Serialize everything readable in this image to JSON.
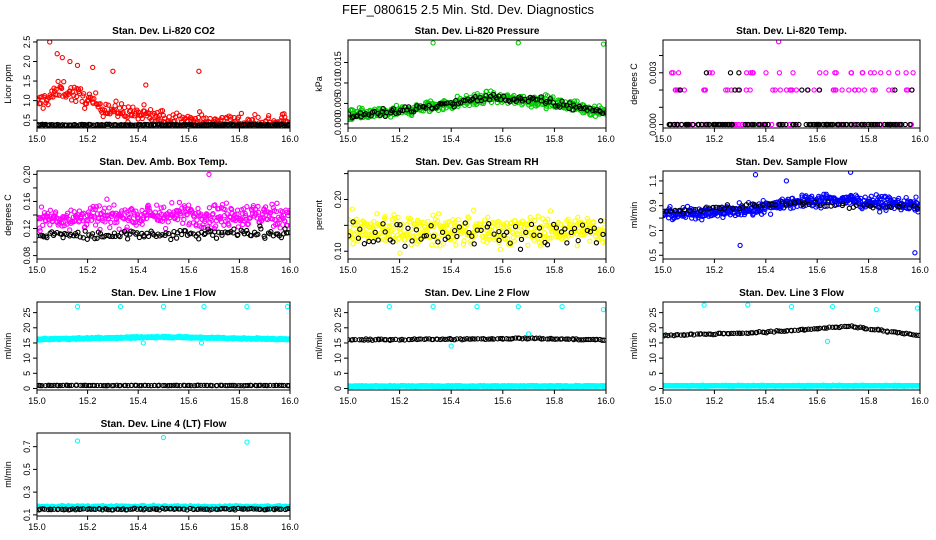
{
  "figure": {
    "title": "FEF_080615  2.5 Min. Std. Dev. Diagnostics"
  },
  "colors": {
    "red": "#ff0000",
    "black": "#000000",
    "green": "#00cc00",
    "magenta": "#ff00ff",
    "yellow": "#ffff00",
    "blue": "#0000ff",
    "cyan": "#00ffff"
  },
  "chart_data": [
    {
      "type": "scatter",
      "title": "Stan. Dev. Li-820 CO2",
      "ylabel": "Licor ppm",
      "xlim": [
        15.0,
        16.0
      ],
      "ylim": [
        0.3,
        2.55
      ],
      "xticks": [
        15.0,
        15.2,
        15.4,
        15.6,
        15.8,
        16.0
      ],
      "yticks": [
        0.5,
        1.0,
        1.5,
        2.0,
        2.5
      ],
      "ytick_labels": [
        "0.5",
        "1.0",
        "1.5",
        "2.0",
        "2.5"
      ],
      "series": [
        {
          "color": "red",
          "base": [
            [
              15.0,
              0.9
            ],
            [
              15.1,
              1.3
            ],
            [
              15.3,
              0.75
            ],
            [
              15.5,
              0.55
            ],
            [
              15.7,
              0.45
            ],
            [
              16.0,
              0.42
            ]
          ],
          "spread": 0.45,
          "n": 280,
          "extra": [
            [
              15.05,
              2.5
            ],
            [
              15.08,
              2.2
            ],
            [
              15.1,
              2.1
            ],
            [
              15.13,
              2.0
            ],
            [
              15.16,
              1.9
            ],
            [
              15.22,
              1.85
            ],
            [
              15.3,
              1.75
            ],
            [
              15.43,
              1.4
            ],
            [
              15.64,
              1.75
            ],
            [
              15.97,
              0.65
            ]
          ]
        },
        {
          "color": "black",
          "base": [
            [
              15.0,
              0.38
            ],
            [
              16.0,
              0.38
            ]
          ],
          "spread": 0.03,
          "n": 180
        }
      ]
    },
    {
      "type": "scatter",
      "title": "Stan. Dev. Li-820 Pressure",
      "ylabel": "kPa",
      "xlim": [
        15.0,
        16.0
      ],
      "ylim": [
        -0.001,
        0.0205
      ],
      "xticks": [
        15.0,
        15.2,
        15.4,
        15.6,
        15.8,
        16.0
      ],
      "yticks": [
        0.0,
        0.005,
        0.01,
        0.015
      ],
      "ytick_labels": [
        "0.000",
        "0.005",
        "0.010",
        "0.015"
      ],
      "series": [
        {
          "color": "green",
          "base": [
            [
              15.0,
              0.002
            ],
            [
              15.2,
              0.003
            ],
            [
              15.35,
              0.0045
            ],
            [
              15.55,
              0.0065
            ],
            [
              15.75,
              0.0055
            ],
            [
              16.0,
              0.003
            ]
          ],
          "spread": 0.0028,
          "n": 420,
          "extra": [
            [
              15.33,
              0.0198
            ],
            [
              15.66,
              0.0198
            ],
            [
              15.99,
              0.0195
            ]
          ]
        },
        {
          "color": "black",
          "base": [
            [
              15.0,
              0.002
            ],
            [
              15.2,
              0.003
            ],
            [
              15.4,
              0.005
            ],
            [
              15.55,
              0.0065
            ],
            [
              15.75,
              0.0055
            ],
            [
              16.0,
              0.003
            ]
          ],
          "spread": 0.0018,
          "n": 120
        }
      ]
    },
    {
      "type": "scatter",
      "title": "Stan. Dev. Li-820 Temp.",
      "ylabel": "degrees C",
      "xlim": [
        15.0,
        16.0
      ],
      "ylim": [
        -0.0002,
        0.0049
      ],
      "xticks": [
        15.0,
        15.2,
        15.4,
        15.6,
        15.8,
        16.0
      ],
      "yticks": [
        0.0,
        0.001,
        0.002,
        0.003,
        0.004
      ],
      "ytick_labels": [
        "0.000",
        "",
        "",
        "0.003",
        ""
      ],
      "series": [
        {
          "color": "magenta",
          "rows": [
            0.0,
            0.002,
            0.003
          ],
          "counts": [
            60,
            45,
            28
          ],
          "extra": [
            [
              15.45,
              0.0048
            ]
          ]
        },
        {
          "color": "black",
          "rows": [
            0.0,
            0.002,
            0.003
          ],
          "counts": [
            140,
            8,
            3
          ]
        }
      ]
    },
    {
      "type": "scatter",
      "title": "Stan. Dev. Amb. Box Temp.",
      "ylabel": "degrees C",
      "xlim": [
        15.0,
        16.0
      ],
      "ylim": [
        0.075,
        0.205
      ],
      "xticks": [
        15.0,
        15.2,
        15.4,
        15.6,
        15.8,
        16.0
      ],
      "yticks": [
        0.08,
        0.1,
        0.12,
        0.14,
        0.16,
        0.18,
        0.2
      ],
      "ytick_labels": [
        "0.08",
        "",
        "0.12",
        "",
        "0.16",
        "",
        "0.20"
      ],
      "series": [
        {
          "color": "magenta",
          "base": [
            [
              15.0,
              0.135
            ],
            [
              15.5,
              0.14
            ],
            [
              16.0,
              0.14
            ]
          ],
          "spread": 0.035,
          "n": 380,
          "extra": [
            [
              15.68,
              0.2
            ]
          ]
        },
        {
          "color": "black",
          "base": [
            [
              15.0,
              0.11
            ],
            [
              15.5,
              0.11
            ],
            [
              16.0,
              0.115
            ]
          ],
          "spread": 0.015,
          "n": 130
        }
      ]
    },
    {
      "type": "scatter",
      "title": "Stan. Dev. Gas Stream RH",
      "ylabel": "percent",
      "xlim": [
        15.0,
        16.0
      ],
      "ylim": [
        0.085,
        0.255
      ],
      "xticks": [
        15.0,
        15.2,
        15.4,
        15.6,
        15.8,
        16.0
      ],
      "yticks": [
        0.1,
        0.15,
        0.2,
        0.25
      ],
      "ytick_labels": [
        "0.10",
        "",
        "0.20",
        ""
      ],
      "series": [
        {
          "color": "yellow",
          "base": [
            [
              15.0,
              0.14
            ],
            [
              16.0,
              0.14
            ]
          ],
          "spread": 0.055,
          "n": 420
        },
        {
          "color": "black",
          "base": [
            [
              15.0,
              0.135
            ],
            [
              16.0,
              0.135
            ]
          ],
          "spread": 0.05,
          "n": 70
        }
      ]
    },
    {
      "type": "scatter",
      "title": "Stan. Dev. Sample Flow",
      "ylabel": "ml/min",
      "xlim": [
        15.0,
        16.0
      ],
      "ylim": [
        0.47,
        1.18
      ],
      "xticks": [
        15.0,
        15.2,
        15.4,
        15.6,
        15.8,
        16.0
      ],
      "yticks": [
        0.5,
        0.6,
        0.7,
        0.8,
        0.9,
        1.0,
        1.1
      ],
      "ytick_labels": [
        "0.5",
        "",
        "0.7",
        "",
        "0.9",
        "",
        "1.1"
      ],
      "series": [
        {
          "color": "blue",
          "base": [
            [
              15.0,
              0.83
            ],
            [
              15.3,
              0.86
            ],
            [
              15.5,
              0.93
            ],
            [
              15.7,
              0.95
            ],
            [
              16.0,
              0.9
            ]
          ],
          "spread": 0.1,
          "n": 460,
          "extra": [
            [
              15.36,
              1.15
            ],
            [
              15.48,
              1.1
            ],
            [
              15.73,
              1.17
            ],
            [
              15.98,
              0.52
            ],
            [
              15.3,
              0.58
            ]
          ]
        },
        {
          "color": "black",
          "base": [
            [
              15.0,
              0.85
            ],
            [
              15.5,
              0.92
            ],
            [
              16.0,
              0.88
            ]
          ],
          "spread": 0.04,
          "n": 60
        }
      ]
    },
    {
      "type": "scatter",
      "title": "Stan. Dev. Line 1 Flow",
      "ylabel": "ml/min",
      "xlim": [
        15.0,
        16.0
      ],
      "ylim": [
        -0.5,
        28.5
      ],
      "xticks": [
        15.0,
        15.2,
        15.4,
        15.6,
        15.8,
        16.0
      ],
      "yticks": [
        0,
        5,
        10,
        15,
        20,
        25
      ],
      "ytick_labels": [
        "0",
        "5",
        "10",
        "15",
        "20",
        "25"
      ],
      "series": [
        {
          "color": "cyan",
          "base": [
            [
              15.0,
              16.2
            ],
            [
              15.5,
              17.0
            ],
            [
              16.0,
              16.2
            ]
          ],
          "spread": 0.5,
          "n": 520,
          "extra": [
            [
              15.16,
              27
            ],
            [
              15.33,
              27
            ],
            [
              15.5,
              27
            ],
            [
              15.66,
              27
            ],
            [
              15.83,
              27
            ],
            [
              15.99,
              27
            ],
            [
              15.42,
              15
            ],
            [
              15.65,
              15
            ]
          ]
        },
        {
          "color": "black",
          "base": [
            [
              15.0,
              1.0
            ],
            [
              16.0,
              1.0
            ]
          ],
          "spread": 0.15,
          "n": 110
        }
      ]
    },
    {
      "type": "scatter",
      "title": "Stan. Dev. Line 2 Flow",
      "ylabel": "ml/min",
      "xlim": [
        15.0,
        16.0
      ],
      "ylim": [
        -0.5,
        28.5
      ],
      "xticks": [
        15.0,
        15.2,
        15.4,
        15.6,
        15.8,
        16.0
      ],
      "yticks": [
        0,
        5,
        10,
        15,
        20,
        25
      ],
      "ytick_labels": [
        "0",
        "5",
        "10",
        "15",
        "20",
        "25"
      ],
      "series": [
        {
          "color": "cyan",
          "base": [
            [
              15.0,
              0.8
            ],
            [
              16.0,
              0.8
            ]
          ],
          "spread": 0.3,
          "n": 520,
          "extra": [
            [
              15.16,
              27
            ],
            [
              15.33,
              27
            ],
            [
              15.5,
              27
            ],
            [
              15.66,
              27
            ],
            [
              15.83,
              27
            ],
            [
              15.99,
              26
            ],
            [
              15.7,
              18
            ],
            [
              15.4,
              14
            ]
          ]
        },
        {
          "color": "black",
          "base": [
            [
              15.0,
              16.0
            ],
            [
              15.7,
              16.5
            ],
            [
              16.0,
              16.0
            ]
          ],
          "spread": 0.4,
          "n": 110
        }
      ]
    },
    {
      "type": "scatter",
      "title": "Stan. Dev. Line 3 Flow",
      "ylabel": "ml/min",
      "xlim": [
        15.0,
        16.0
      ],
      "ylim": [
        -0.5,
        28.5
      ],
      "xticks": [
        15.0,
        15.2,
        15.4,
        15.6,
        15.8,
        16.0
      ],
      "yticks": [
        0,
        5,
        10,
        15,
        20,
        25
      ],
      "ytick_labels": [
        "0",
        "5",
        "10",
        "15",
        "20",
        "25"
      ],
      "series": [
        {
          "color": "cyan",
          "base": [
            [
              15.0,
              0.9
            ],
            [
              16.0,
              0.9
            ]
          ],
          "spread": 0.3,
          "n": 520,
          "extra": [
            [
              15.0,
              17.5
            ],
            [
              15.16,
              27.5
            ],
            [
              15.33,
              27.5
            ],
            [
              15.5,
              27
            ],
            [
              15.66,
              27
            ],
            [
              15.83,
              26
            ],
            [
              15.99,
              26.5
            ],
            [
              15.64,
              15.5
            ]
          ]
        },
        {
          "color": "black",
          "base": [
            [
              15.0,
              17.5
            ],
            [
              15.4,
              18.5
            ],
            [
              15.72,
              20.5
            ],
            [
              16.0,
              17.5
            ]
          ],
          "spread": 0.5,
          "n": 110
        }
      ]
    },
    {
      "type": "scatter",
      "title": "Stan. Dev. Line 4 (LT) Flow",
      "ylabel": "ml/min",
      "xlim": [
        15.0,
        16.0
      ],
      "ylim": [
        0.09,
        0.82
      ],
      "xticks": [
        15.0,
        15.2,
        15.4,
        15.6,
        15.8,
        16.0
      ],
      "yticks": [
        0.1,
        0.3,
        0.5,
        0.7
      ],
      "ytick_labels": [
        "0.1",
        "0.3",
        "0.5",
        "0.7"
      ],
      "series": [
        {
          "color": "cyan",
          "base": [
            [
              15.0,
              0.17
            ],
            [
              16.0,
              0.17
            ]
          ],
          "spread": 0.02,
          "n": 520,
          "extra": [
            [
              15.16,
              0.75
            ],
            [
              15.5,
              0.78
            ],
            [
              15.83,
              0.74
            ]
          ]
        },
        {
          "color": "black",
          "base": [
            [
              15.0,
              0.15
            ],
            [
              16.0,
              0.15
            ]
          ],
          "spread": 0.015,
          "n": 110
        }
      ]
    }
  ]
}
